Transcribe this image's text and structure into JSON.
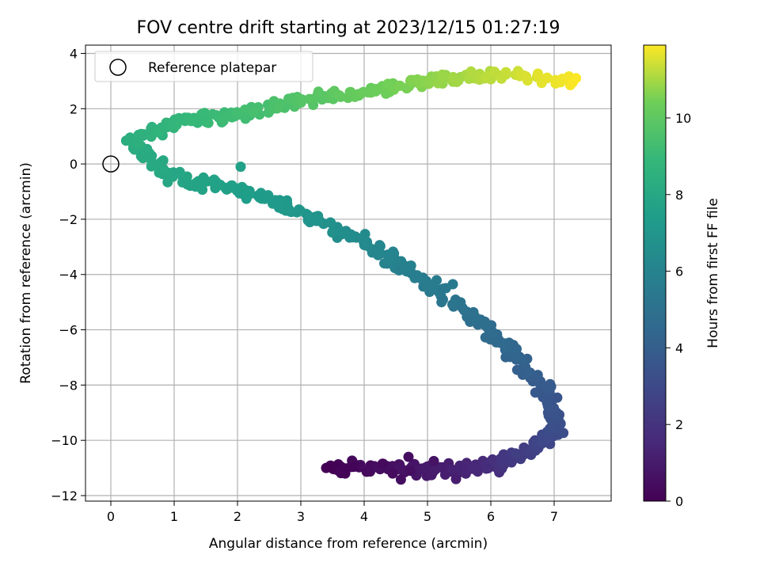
{
  "chart_data": {
    "type": "scatter",
    "title": "FOV centre drift starting at 2023/12/15 01:27:19",
    "xlabel": "Angular distance from reference (arcmin)",
    "ylabel": "Rotation from reference (arcmin)",
    "xlim": [
      -0.4,
      7.9
    ],
    "ylim": [
      -12.2,
      4.3
    ],
    "xticks": [
      "0",
      "1",
      "2",
      "3",
      "4",
      "5",
      "6",
      "7"
    ],
    "yticks": [
      "4",
      "2",
      "0",
      "−2",
      "−4",
      "−6",
      "−8",
      "−10",
      "−12"
    ],
    "grid": true,
    "legend": {
      "label": "Reference platepar",
      "placement": "top-left"
    },
    "colorbar": {
      "label": "Hours from first FF file",
      "colormap": "viridis",
      "range": [
        0,
        11.9
      ],
      "ticks": [
        "0",
        "2",
        "4",
        "6",
        "8",
        "10"
      ]
    },
    "reference_point": {
      "x": 0,
      "y": 0
    },
    "path_keypoints": [
      {
        "x": 3.4,
        "y": -11.0,
        "t": 0.0
      },
      {
        "x": 4.5,
        "y": -11.0,
        "t": 0.6
      },
      {
        "x": 5.5,
        "y": -11.1,
        "t": 1.2
      },
      {
        "x": 6.2,
        "y": -10.8,
        "t": 2.0
      },
      {
        "x": 6.8,
        "y": -10.1,
        "t": 2.8
      },
      {
        "x": 7.1,
        "y": -9.3,
        "t": 3.3
      },
      {
        "x": 6.8,
        "y": -8.0,
        "t": 3.8
      },
      {
        "x": 6.3,
        "y": -6.7,
        "t": 4.4
      },
      {
        "x": 5.6,
        "y": -5.3,
        "t": 5.0
      },
      {
        "x": 4.8,
        "y": -4.0,
        "t": 5.7
      },
      {
        "x": 4.0,
        "y": -2.9,
        "t": 6.3
      },
      {
        "x": 3.0,
        "y": -1.8,
        "t": 7.0
      },
      {
        "x": 2.0,
        "y": -0.9,
        "t": 7.5
      },
      {
        "x": 1.0,
        "y": -0.5,
        "t": 7.9
      },
      {
        "x": 0.3,
        "y": 0.8,
        "t": 8.3
      },
      {
        "x": 1.0,
        "y": 1.5,
        "t": 8.8
      },
      {
        "x": 2.0,
        "y": 1.8,
        "t": 9.2
      },
      {
        "x": 3.0,
        "y": 2.3,
        "t": 9.7
      },
      {
        "x": 4.0,
        "y": 2.6,
        "t": 10.2
      },
      {
        "x": 5.0,
        "y": 3.0,
        "t": 10.7
      },
      {
        "x": 6.0,
        "y": 3.2,
        "t": 11.2
      },
      {
        "x": 7.4,
        "y": 3.0,
        "t": 11.9
      }
    ]
  }
}
